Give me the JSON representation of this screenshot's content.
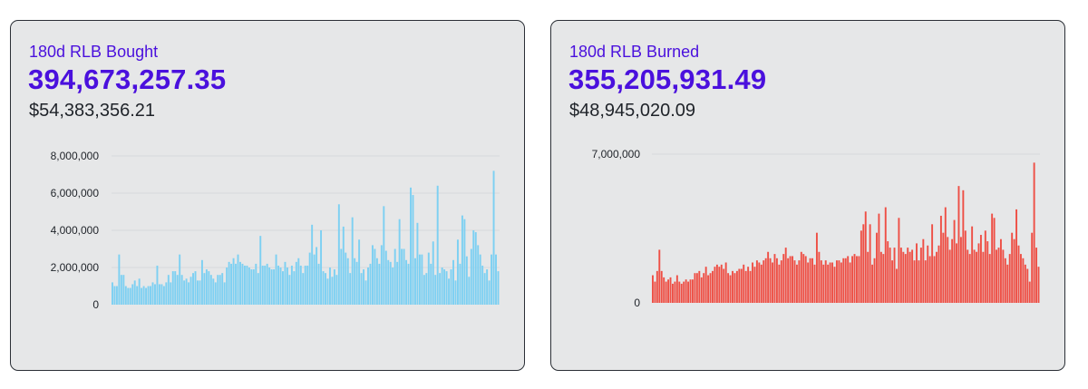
{
  "cards": [
    {
      "id": "bought",
      "label": "180d RLB Bought",
      "amount": "394,673,257.35",
      "usd": "$54,383,356.21",
      "color": "#7dd0f2"
    },
    {
      "id": "burned",
      "label": "180d RLB Burned",
      "amount": "355,205,931.49",
      "usd": "$48,945,020.09",
      "color": "#ee4f45"
    }
  ],
  "chart_data": [
    {
      "type": "bar",
      "series": [
        {
          "values": [
            1200000,
            1000000,
            1000000,
            2700000,
            1600000,
            1600000,
            1000000,
            900000,
            900000,
            1100000,
            1300000,
            1000000,
            1400000,
            900000,
            1000000,
            900000,
            1000000,
            1000000,
            1200000,
            1100000,
            2100000,
            1100000,
            1100000,
            1000000,
            1200000,
            1600000,
            1200000,
            1800000,
            1800000,
            1600000,
            2700000,
            1600000,
            1300000,
            1400000,
            1200000,
            1500000,
            1700000,
            1800000,
            1300000,
            1300000,
            2400000,
            1700000,
            1900000,
            1800000,
            1600000,
            1400000,
            1200000,
            1600000,
            1600000,
            1700000,
            1200000,
            2000000,
            2300000,
            2200000,
            2500000,
            2200000,
            2700000,
            2300000,
            2200000,
            2100000,
            2100000,
            2000000,
            1900000,
            1900000,
            2200000,
            1700000,
            3700000,
            2100000,
            2100000,
            2200000,
            2000000,
            1900000,
            1900000,
            2700000,
            2100000,
            2000000,
            1800000,
            2300000,
            2000000,
            1600000,
            2100000,
            1800000,
            2300000,
            2500000,
            2100000,
            1700000,
            2100000,
            2100000,
            2800000,
            4300000,
            2700000,
            3100000,
            2200000,
            4000000,
            1800000,
            1700000,
            1400000,
            2000000,
            1500000,
            1900000,
            1600000,
            5400000,
            3000000,
            4200000,
            2800000,
            2500000,
            1700000,
            4700000,
            2500000,
            2300000,
            3500000,
            1700000,
            1900000,
            1300000,
            2000000,
            2200000,
            3200000,
            3000000,
            2500000,
            2200000,
            3200000,
            5300000,
            2900000,
            2400000,
            2300000,
            2000000,
            3000000,
            2300000,
            4600000,
            3000000,
            3000000,
            2400000,
            2200000,
            6300000,
            5900000,
            2500000,
            4400000,
            2700000,
            2700000,
            1600000,
            1700000,
            2800000,
            2200000,
            3400000,
            1600000,
            6400000,
            1700000,
            2000000,
            1900000,
            1800000,
            1400000,
            1900000,
            2400000,
            1300000,
            3500000,
            2200000,
            4800000,
            4600000,
            2600000,
            1500000,
            3000000,
            4000000,
            3900000,
            3200000,
            2700000,
            2100000,
            1700000,
            1900000,
            1300000,
            2700000,
            7200000,
            2700000,
            1800000
          ]
        }
      ],
      "ylim": [
        0,
        8000000
      ],
      "yticks": [
        0,
        2000000,
        4000000,
        6000000,
        8000000
      ],
      "ytick_labels": [
        "0",
        "2,000,000",
        "4,000,000",
        "6,000,000",
        "8,000,000"
      ],
      "grid": true
    },
    {
      "type": "bar",
      "series": [
        {
          "values": [
            1300000,
            1000000,
            1500000,
            2500000,
            1500000,
            1200000,
            1000000,
            1100000,
            1200000,
            900000,
            1000000,
            1300000,
            1000000,
            900000,
            1000000,
            1100000,
            1000000,
            1100000,
            1100000,
            1400000,
            1400000,
            1500000,
            1200000,
            1400000,
            1700000,
            1300000,
            1400000,
            1500000,
            1700000,
            1800000,
            1700000,
            1800000,
            1600000,
            1900000,
            1400000,
            1300000,
            1500000,
            1400000,
            1500000,
            1600000,
            1600000,
            1800000,
            1500000,
            1700000,
            1500000,
            1900000,
            1700000,
            2000000,
            1900000,
            1800000,
            2000000,
            2100000,
            2400000,
            2100000,
            1900000,
            2300000,
            2100000,
            1800000,
            2000000,
            2300000,
            2600000,
            2100000,
            2200000,
            2200000,
            2000000,
            1800000,
            2000000,
            2400000,
            2300000,
            2200000,
            1900000,
            2100000,
            2100000,
            1800000,
            3300000,
            2400000,
            2000000,
            1800000,
            2000000,
            1800000,
            1900000,
            1900000,
            1700000,
            2000000,
            2000000,
            1900000,
            2100000,
            2100000,
            2200000,
            1900000,
            2200000,
            2300000,
            2200000,
            2200000,
            3400000,
            3700000,
            4300000,
            2400000,
            3700000,
            1800000,
            2100000,
            3300000,
            4200000,
            2400000,
            2300000,
            4500000,
            2900000,
            2600000,
            2000000,
            2600000,
            1600000,
            4000000,
            2600000,
            2400000,
            2300000,
            2600000,
            2400000,
            2500000,
            2000000,
            2800000,
            2000000,
            2600000,
            3000000,
            2000000,
            2700000,
            2200000,
            3700000,
            2200000,
            2400000,
            2700000,
            4100000,
            3300000,
            4500000,
            3100000,
            2500000,
            3000000,
            3900000,
            2800000,
            5500000,
            3100000,
            5300000,
            3400000,
            2500000,
            2300000,
            3600000,
            2500000,
            2400000,
            2800000,
            3200000,
            2400000,
            3400000,
            2900000,
            2300000,
            4200000,
            4000000,
            2500000,
            2600000,
            3000000,
            2500000,
            2100000,
            1800000,
            2300000,
            3300000,
            3000000,
            4400000,
            2700000,
            2300000,
            2100000,
            1800000,
            1600000,
            1000000,
            3300000,
            6600000,
            2600000,
            1700000
          ]
        }
      ],
      "ylim": [
        0,
        7000000
      ],
      "yticks": [
        0,
        7000000
      ],
      "ytick_labels": [
        "0",
        "7,000,000"
      ],
      "grid": true
    }
  ]
}
